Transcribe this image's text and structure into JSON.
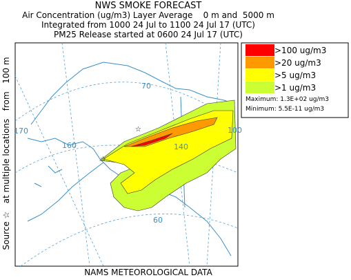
{
  "header": {
    "title": "NWS SMOKE FORECAST",
    "lines": [
      "Air Concentration (ug/m3) Layer Average    0 m and  5000 m",
      "Integrated from 1000 24 Jul to 1100 24 Jul 17 (UTC)",
      "PM25 Release started at 0600 24 Jul 17 (UTC)"
    ]
  },
  "side_label": "Source ☆   at multiple locations   from   100 m",
  "map": {
    "graticule_labels": [
      "170",
      "160",
      "70",
      "140",
      "100",
      "60"
    ]
  },
  "legend": {
    "items": [
      {
        "label": ">100 ug/m3",
        "color": "#ff0000"
      },
      {
        "label": ">20 ug/m3",
        "color": "#ff9900"
      },
      {
        "label": ">5 ug/m3",
        "color": "#ffff00"
      },
      {
        "label": ">1 ug/m3",
        "color": "#ccff33"
      }
    ],
    "maximum": "Maximum: 1.3E+02 ug/m3",
    "minimum": "Minimum: 5.5E-11 ug/m3"
  },
  "footer": "NAMS METEOROLOGICAL DATA"
}
